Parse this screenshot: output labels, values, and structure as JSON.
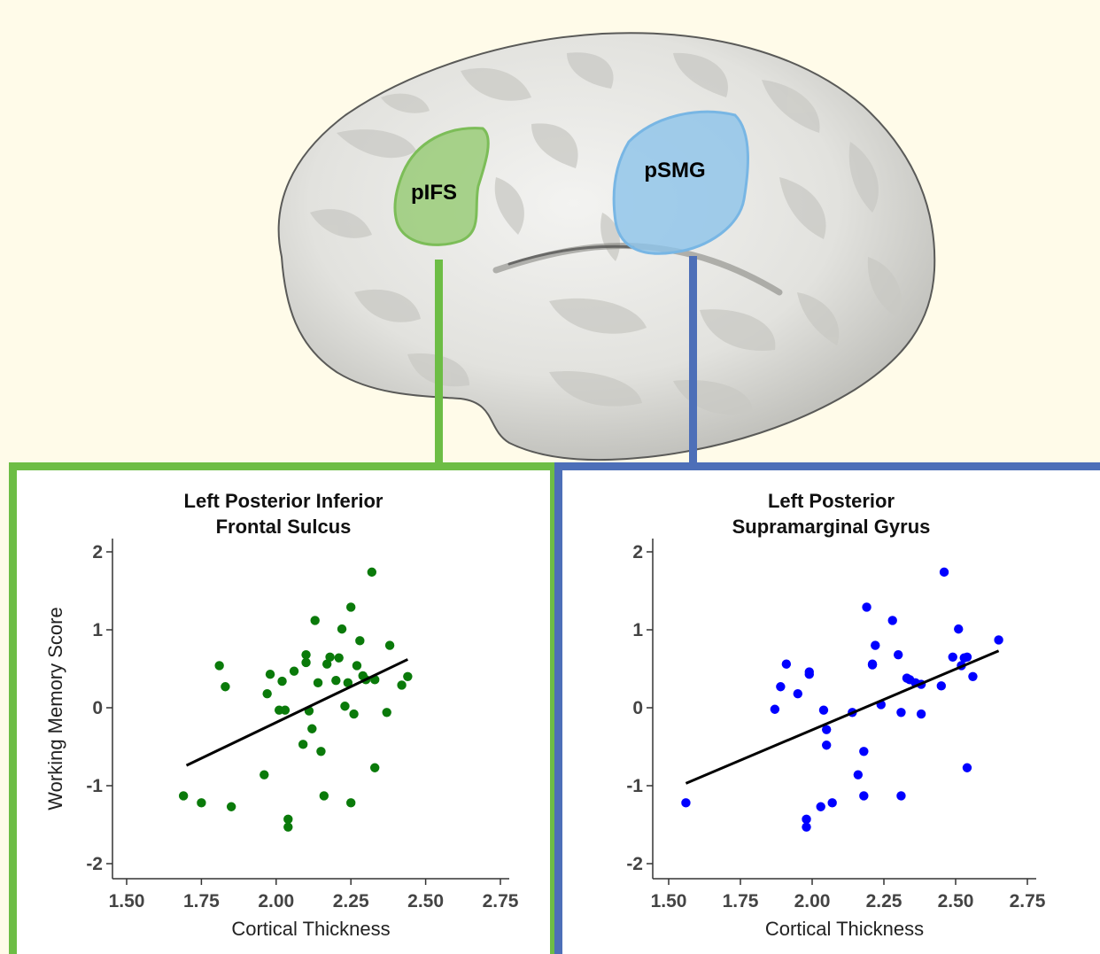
{
  "brain": {
    "regions": [
      {
        "label": "pIFS",
        "color": "#8fc86a"
      },
      {
        "label": "pSMG",
        "color": "#8cc3ea"
      }
    ]
  },
  "chart_data": [
    {
      "type": "scatter",
      "title": "Left Posterior Inferior\nFrontal Sulcus",
      "title_lines": [
        "Left Posterior Inferior",
        "Frontal Sulcus"
      ],
      "xlabel": "Cortical Thickness",
      "ylabel": "Working Memory Score",
      "xlim": [
        1.5,
        2.75
      ],
      "ylim": [
        -2,
        2
      ],
      "xticks": [
        "1.50",
        "1.75",
        "2.00",
        "2.25",
        "2.50",
        "2.75"
      ],
      "yticks": [
        "2",
        "1",
        "0",
        "-1",
        "-2"
      ],
      "point_color": "#0a7a0a",
      "frame_color": "#6dbd45",
      "grid": false,
      "trend_line": {
        "x": [
          1.7,
          2.44
        ],
        "y": [
          -0.74,
          0.62
        ]
      },
      "series": [
        {
          "x": [
            1.69,
            1.75,
            1.81,
            1.83,
            1.85,
            1.96,
            1.97,
            1.98,
            2.01,
            2.02,
            2.03,
            2.04,
            2.04,
            2.06,
            2.09,
            2.1,
            2.1,
            2.11,
            2.12,
            2.13,
            2.14,
            2.15,
            2.16,
            2.17,
            2.18,
            2.2,
            2.21,
            2.22,
            2.23,
            2.24,
            2.25,
            2.25,
            2.26,
            2.27,
            2.28,
            2.29,
            2.3,
            2.32,
            2.33,
            2.33,
            2.37,
            2.38,
            2.42,
            2.44
          ],
          "y": [
            -1.13,
            -1.22,
            0.54,
            0.27,
            -1.27,
            -0.86,
            0.18,
            0.43,
            -0.03,
            0.34,
            -0.03,
            -1.43,
            -1.53,
            0.47,
            -0.47,
            0.68,
            0.58,
            -0.04,
            -0.27,
            1.12,
            0.32,
            -0.56,
            -1.13,
            0.56,
            0.65,
            0.35,
            0.64,
            1.01,
            0.02,
            0.32,
            -1.22,
            1.29,
            -0.08,
            0.54,
            0.86,
            0.41,
            0.36,
            1.74,
            -0.77,
            0.36,
            -0.06,
            0.8,
            0.29,
            0.4
          ]
        }
      ]
    },
    {
      "type": "scatter",
      "title": "Left Posterior\nSupramarginal Gyrus",
      "title_lines": [
        "Left Posterior",
        "Supramarginal Gyrus"
      ],
      "xlabel": "Cortical Thickness",
      "ylabel": "",
      "xlim": [
        1.5,
        2.75
      ],
      "ylim": [
        -2,
        2
      ],
      "xticks": [
        "1.50",
        "1.75",
        "2.00",
        "2.25",
        "2.50",
        "2.75"
      ],
      "yticks": [
        "2",
        "1",
        "0",
        "-1",
        "-2"
      ],
      "point_color": "#0000ff",
      "frame_color": "#4d6fb8",
      "grid": false,
      "trend_line": {
        "x": [
          1.56,
          2.65
        ],
        "y": [
          -0.97,
          0.73
        ]
      },
      "series": [
        {
          "x": [
            1.56,
            1.87,
            1.89,
            1.91,
            1.95,
            1.98,
            1.98,
            1.99,
            1.99,
            2.03,
            2.04,
            2.05,
            2.05,
            2.07,
            2.14,
            2.16,
            2.18,
            2.18,
            2.19,
            2.21,
            2.21,
            2.22,
            2.24,
            2.28,
            2.3,
            2.31,
            2.31,
            2.33,
            2.34,
            2.36,
            2.38,
            2.38,
            2.45,
            2.46,
            2.49,
            2.51,
            2.52,
            2.53,
            2.54,
            2.54,
            2.56,
            2.65
          ],
          "y": [
            -1.22,
            -0.02,
            0.27,
            0.56,
            0.18,
            -1.43,
            -1.53,
            0.43,
            0.46,
            -1.27,
            -0.03,
            -0.48,
            -0.28,
            -1.22,
            -0.06,
            -0.86,
            -1.13,
            -0.56,
            1.29,
            0.55,
            0.56,
            0.8,
            0.04,
            1.12,
            0.68,
            -1.13,
            -0.06,
            0.38,
            0.36,
            0.32,
            -0.08,
            0.3,
            0.28,
            1.74,
            0.65,
            1.01,
            0.54,
            0.64,
            0.65,
            -0.77,
            0.4,
            0.87
          ]
        }
      ]
    }
  ]
}
